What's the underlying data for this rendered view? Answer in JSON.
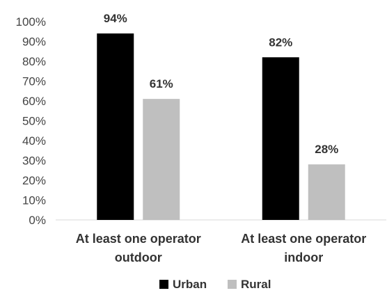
{
  "chart_data": {
    "type": "bar",
    "categories": [
      [
        "At least one operator",
        "outdoor"
      ],
      [
        "At least one operator",
        "indoor"
      ]
    ],
    "series": [
      {
        "name": "Urban",
        "values": [
          94,
          82
        ],
        "color": "#000000"
      },
      {
        "name": "Rural",
        "values": [
          61,
          28
        ],
        "color": "#bfbfbf"
      }
    ],
    "data_labels": [
      [
        "94%",
        "82%"
      ],
      [
        "61%",
        "28%"
      ]
    ],
    "y_ticks": [
      "0%",
      "10%",
      "20%",
      "30%",
      "40%",
      "50%",
      "60%",
      "70%",
      "80%",
      "90%",
      "100%"
    ],
    "ylim": [
      0,
      100
    ],
    "grid": false,
    "legend": "bottom-center",
    "axis_color": "#d9d9d9"
  }
}
